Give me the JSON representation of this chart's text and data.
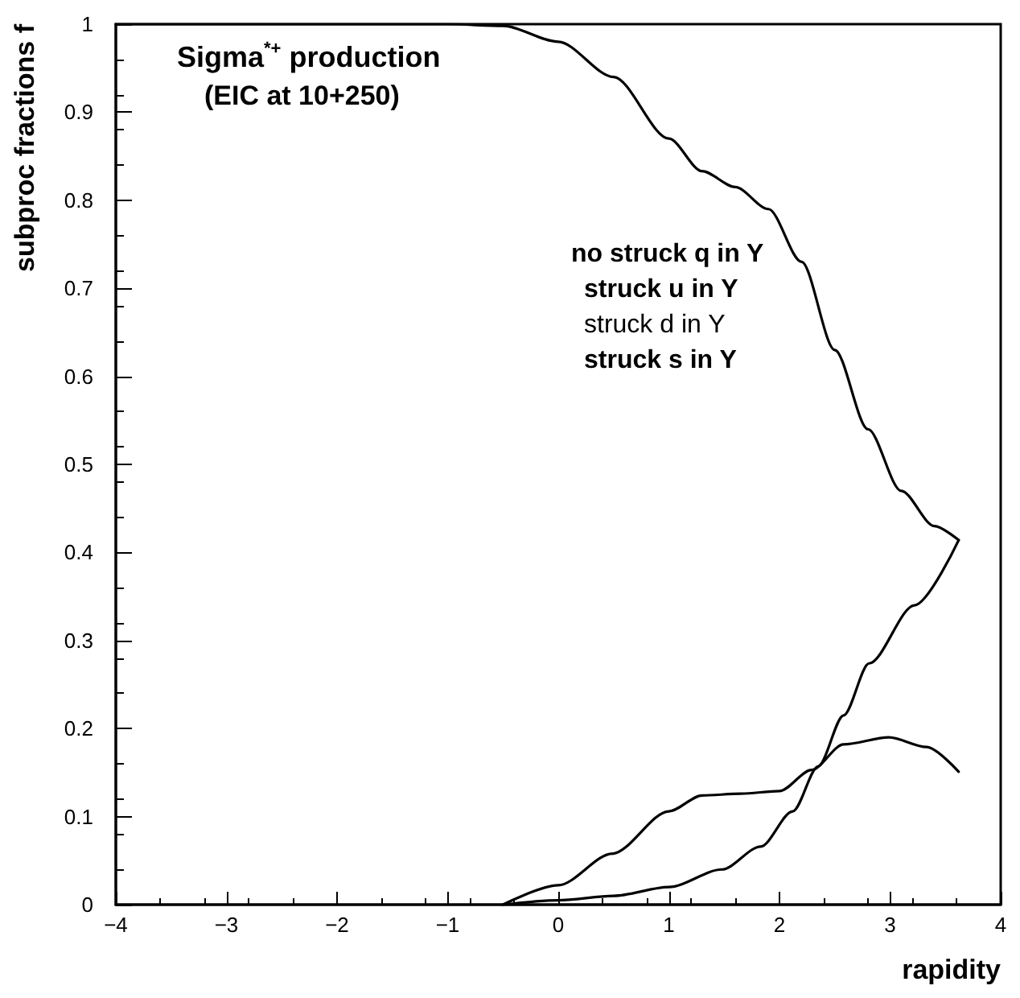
{
  "chart_data": {
    "type": "line",
    "title": "Sigma$^{*+}$ production",
    "subtitle": "(EIC at 10+250)",
    "xlabel": "rapidity",
    "ylabel": "subproc fractions f",
    "annotations": [
      "no struck q in Y",
      "struck u in Y",
      "struck d in Y",
      "struck s in Y"
    ],
    "series": [
      {
        "color": "#000000",
        "x": [
          -4,
          -3,
          -2,
          -1,
          -0.5,
          0,
          0.5,
          1,
          1.3,
          1.6,
          1.9,
          2.2,
          2.5,
          2.8,
          3.1,
          3.4,
          3.62
        ],
        "values": [
          1,
          1,
          1,
          1,
          0.998,
          0.98,
          0.94,
          0.87,
          0.833,
          0.815,
          0.79,
          0.73,
          0.63,
          0.54,
          0.47,
          0.43,
          0.414
        ]
      },
      {
        "color": "#000000",
        "x": [
          -0.5,
          0,
          0.5,
          1,
          1.48,
          1.83,
          2.12,
          2.35,
          2.58,
          2.81,
          3.22,
          3.62
        ],
        "values": [
          0,
          0.005,
          0.01,
          0.02,
          0.04,
          0.066,
          0.106,
          0.157,
          0.215,
          0.274,
          0.34,
          0.414
        ]
      },
      {
        "color": "#000000",
        "x": [
          -0.5,
          0,
          0.49,
          1,
          1.3,
          1.65,
          2,
          2.29,
          2.58,
          2.99,
          3.33,
          3.62
        ],
        "values": [
          0,
          0.022,
          0.058,
          0.106,
          0.124,
          0.126,
          0.129,
          0.153,
          0.182,
          0.19,
          0.179,
          0.151
        ]
      }
    ],
    "xlim": [
      -4,
      4
    ],
    "xticks": [
      -4,
      -3,
      -2,
      -1,
      0,
      1,
      2,
      3,
      4
    ],
    "ylim": [
      0,
      1
    ],
    "yticks": [
      0,
      0.1,
      0.2,
      0.3,
      0.4,
      0.5,
      0.6,
      0.7,
      0.8,
      0.9,
      1
    ],
    "grid": false,
    "marker": "none",
    "line_style": "solid"
  }
}
